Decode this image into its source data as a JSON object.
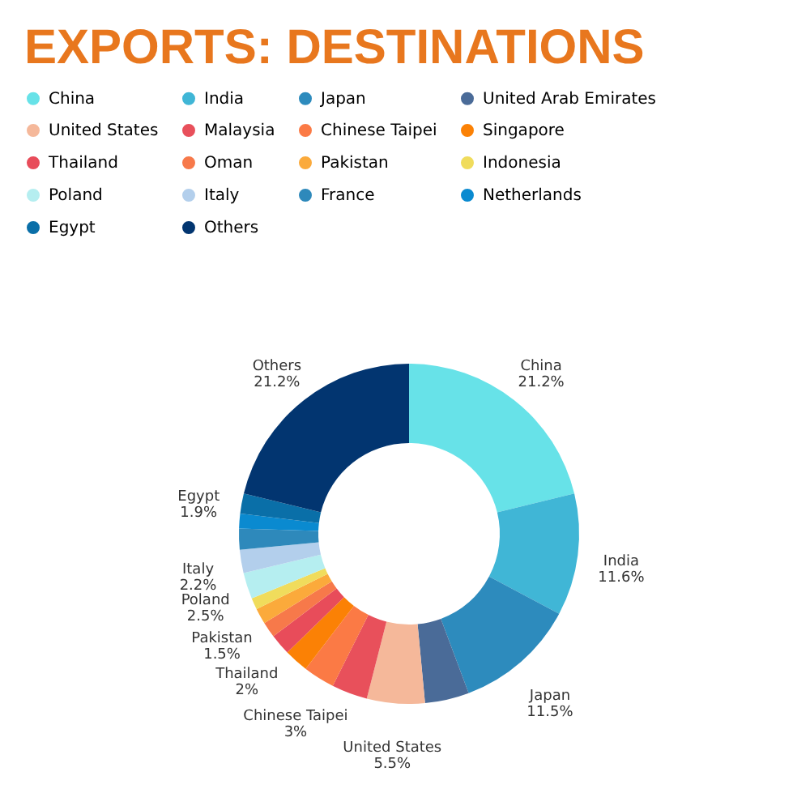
{
  "chart_data": {
    "type": "donut",
    "title": "EXPORTS: DESTINATIONS",
    "categories": [
      "China",
      "India",
      "Japan",
      "United Arab Emirates",
      "United States",
      "Malaysia",
      "Chinese Taipei",
      "Singapore",
      "Thailand",
      "Oman",
      "Pakistan",
      "Indonesia",
      "Poland",
      "Italy",
      "France",
      "Netherlands",
      "Egypt",
      "Others"
    ],
    "values": [
      21.2,
      11.6,
      11.5,
      4.2,
      5.5,
      3.4,
      3,
      2.3,
      2,
      1.5,
      1.5,
      1.1,
      2.5,
      2.2,
      2.0,
      1.4,
      1.9,
      21.2
    ],
    "value_labels": [
      "21.2%",
      "11.6%",
      "11.5%",
      null,
      "5.5%",
      null,
      "3%",
      null,
      "2%",
      null,
      "1.5%",
      null,
      "2.5%",
      "2.2%",
      null,
      null,
      "1.9%",
      "21.2%"
    ],
    "colors": [
      "#67e2e8",
      "#40b6d6",
      "#2d8bbd",
      "#4a6b98",
      "#f5b89a",
      "#e8505b",
      "#fb7a45",
      "#fb8105",
      "#e84c5a",
      "#f7794a",
      "#fbaa3b",
      "#f0dc5c",
      "#b5eef0",
      "#b3cfec",
      "#2e89bb",
      "#0a8ad0",
      "#0a6fa8",
      "#023570"
    ],
    "legend": "top"
  }
}
